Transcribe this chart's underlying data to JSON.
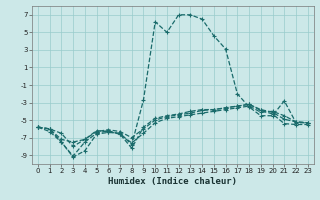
{
  "xlabel": "Humidex (Indice chaleur)",
  "background_color": "#cce8e8",
  "grid_color": "#99cccc",
  "line_color": "#1a6b6b",
  "xlim": [
    -0.5,
    23.5
  ],
  "ylim": [
    -10,
    8
  ],
  "yticks": [
    -9,
    -7,
    -5,
    -3,
    -1,
    1,
    3,
    5,
    7
  ],
  "xticks": [
    0,
    1,
    2,
    3,
    4,
    5,
    6,
    7,
    8,
    9,
    10,
    11,
    12,
    13,
    14,
    15,
    16,
    17,
    18,
    19,
    20,
    21,
    22,
    23
  ],
  "line1_x": [
    0,
    1,
    2,
    3,
    4,
    5,
    6,
    7,
    8,
    9,
    10,
    11,
    12,
    13,
    14,
    15,
    16,
    17,
    18,
    19,
    20,
    21,
    22,
    23
  ],
  "line1_y": [
    -5.8,
    -6.3,
    -7.5,
    -9.2,
    -8.5,
    -6.6,
    -6.4,
    -6.5,
    -7.8,
    -2.7,
    6.2,
    5.0,
    7.0,
    7.0,
    6.5,
    4.6,
    3.1,
    -2.0,
    -3.5,
    -4.5,
    -4.5,
    -2.8,
    -5.3,
    -5.3
  ],
  "line2_x": [
    0,
    1,
    2,
    3,
    4,
    5,
    6,
    7,
    8,
    9,
    10,
    11,
    12,
    13,
    14,
    15,
    16,
    17,
    18,
    19,
    20,
    21,
    22,
    23
  ],
  "line2_y": [
    -5.8,
    -6.0,
    -7.2,
    -7.5,
    -7.2,
    -6.2,
    -6.3,
    -6.6,
    -7.6,
    -6.5,
    -5.3,
    -4.8,
    -4.6,
    -4.4,
    -4.2,
    -4.0,
    -3.8,
    -3.6,
    -3.4,
    -4.1,
    -4.0,
    -4.5,
    -5.2,
    -5.3
  ],
  "line3_x": [
    0,
    1,
    2,
    3,
    4,
    5,
    6,
    7,
    8,
    9,
    10,
    11,
    12,
    13,
    14,
    15,
    16,
    17,
    18,
    19,
    20,
    21,
    22,
    23
  ],
  "line3_y": [
    -5.8,
    -6.0,
    -7.5,
    -9.1,
    -7.5,
    -6.5,
    -6.2,
    -6.6,
    -8.2,
    -5.8,
    -4.8,
    -4.5,
    -4.3,
    -4.0,
    -3.8,
    -3.8,
    -3.6,
    -3.4,
    -3.2,
    -3.9,
    -4.3,
    -5.4,
    -5.5,
    -5.5
  ],
  "line4_x": [
    0,
    1,
    2,
    3,
    4,
    5,
    6,
    7,
    8,
    9,
    10,
    11,
    12,
    13,
    14,
    15,
    16,
    17,
    18,
    19,
    20,
    21,
    22,
    23
  ],
  "line4_y": [
    -5.8,
    -6.0,
    -6.5,
    -8.0,
    -7.2,
    -6.3,
    -6.1,
    -6.3,
    -7.0,
    -6.0,
    -5.0,
    -4.6,
    -4.4,
    -4.2,
    -3.9,
    -3.8,
    -3.6,
    -3.4,
    -3.2,
    -3.8,
    -4.1,
    -4.9,
    -5.2,
    -5.3
  ]
}
